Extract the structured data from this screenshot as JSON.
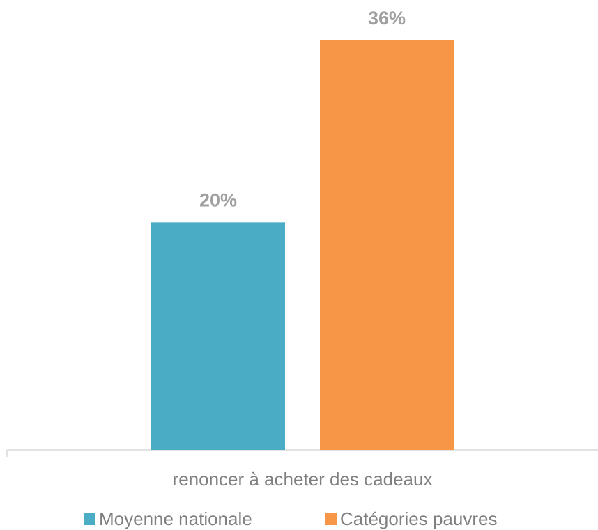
{
  "chart_data": {
    "type": "bar",
    "categories": [
      "renoncer à acheter des cadeaux"
    ],
    "series": [
      {
        "name": "Moyenne nationale",
        "color": "#4bacc6",
        "values": [
          20
        ],
        "value_labels": [
          "20%"
        ]
      },
      {
        "name": "Catégories pauvres",
        "color": "#f79646",
        "values": [
          36
        ],
        "value_labels": [
          "36%"
        ]
      }
    ],
    "legend": "bottom"
  }
}
